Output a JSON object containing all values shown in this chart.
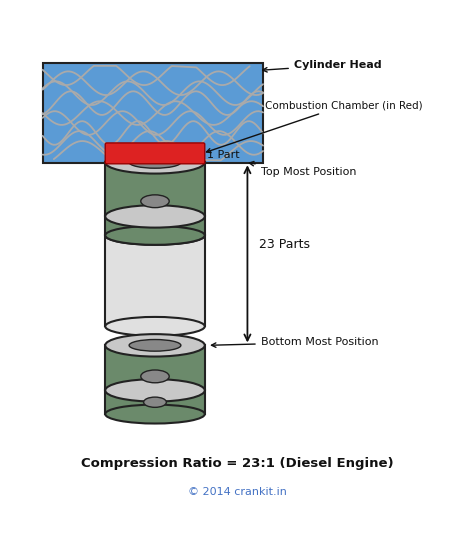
{
  "bg_color": "#ffffff",
  "cylinder_head_color": "#5b9bd5",
  "wave_color": "#aaaaaa",
  "combustion_color": "#dd2222",
  "piston_green": "#6b8a6b",
  "piston_face_light": "#c8c8c8",
  "piston_face_dark": "#888888",
  "cylinder_wall_color": "#e0e0e0",
  "cylinder_stroke": "#222222",
  "annotation_color": "#111111",
  "copyright_color": "#4472c4",
  "title_bottom": "Compression Ratio = 23:1 (Diesel Engine)",
  "copyright_text": "© 2014 crankit.in",
  "label_cylinder_head": "Cylinder Head",
  "label_combustion": "Combustion Chamber (in Red)",
  "label_1part": "1 Part",
  "label_top_pos": "Top Most Position",
  "label_23parts": "23 Parts",
  "label_bottom_pos": "Bottom Most Position",
  "figw": 4.74,
  "figh": 5.39,
  "dpi": 100
}
